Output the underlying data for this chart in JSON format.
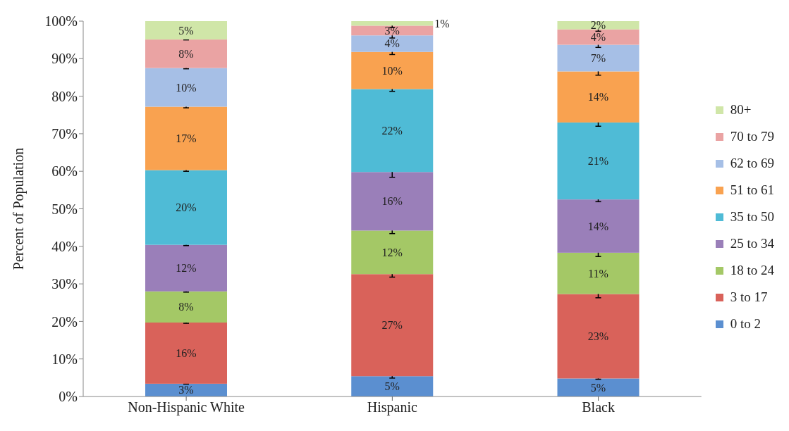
{
  "chart_data": {
    "type": "bar",
    "stacked": true,
    "ylabel": "Percent of Population",
    "categories": [
      "Non-Hispanic White",
      "Hispanic",
      "Black"
    ],
    "ylim": [
      0,
      100
    ],
    "yticks": [
      {
        "value": 0,
        "label": "0%"
      },
      {
        "value": 10,
        "label": "10%"
      },
      {
        "value": 20,
        "label": "20%"
      },
      {
        "value": 30,
        "label": "30%"
      },
      {
        "value": 40,
        "label": "40%"
      },
      {
        "value": 50,
        "label": "50%"
      },
      {
        "value": 60,
        "label": "60%"
      },
      {
        "value": 70,
        "label": "70%"
      },
      {
        "value": 80,
        "label": "80%"
      },
      {
        "value": 90,
        "label": "90%"
      },
      {
        "value": 100,
        "label": "100%"
      }
    ],
    "grid": false,
    "legend": "right",
    "series": [
      {
        "name": "0 to 2",
        "color": "#5b8fd0",
        "values": [
          3.4,
          5.4,
          4.8
        ],
        "errors": [
          0.1,
          0.5,
          0.2
        ],
        "value_labels": [
          "3%",
          "5%",
          "5%"
        ]
      },
      {
        "name": "3 to 17",
        "color": "#d9625a",
        "values": [
          16.3,
          27.2,
          22.5
        ],
        "errors": [
          0.2,
          0.8,
          1.0
        ],
        "value_labels": [
          "16%",
          "27%",
          "23%"
        ]
      },
      {
        "name": "18 to 24",
        "color": "#a4c866",
        "values": [
          8.3,
          11.6,
          11.0
        ],
        "errors": [
          0.2,
          0.8,
          1.0
        ],
        "value_labels": [
          "8%",
          "12%",
          "11%"
        ]
      },
      {
        "name": "25 to 34",
        "color": "#9a7fb9",
        "values": [
          12.4,
          15.6,
          14.2
        ],
        "errors": [
          0.2,
          1.4,
          0.6
        ],
        "value_labels": [
          "12%",
          "16%",
          "14%"
        ]
      },
      {
        "name": "35 to 50",
        "color": "#4fbbd6",
        "values": [
          19.9,
          22.1,
          20.5
        ],
        "errors": [
          0.3,
          0.6,
          1.0
        ],
        "value_labels": [
          "20%",
          "22%",
          "21%"
        ]
      },
      {
        "name": "51 to 61",
        "color": "#f9a250",
        "values": [
          16.9,
          9.9,
          13.6
        ],
        "errors": [
          0.3,
          0.7,
          1.0
        ],
        "value_labels": [
          "17%",
          "10%",
          "14%"
        ]
      },
      {
        "name": "62 to 69",
        "color": "#a6bfe6",
        "values": [
          10.3,
          4.4,
          7.1
        ],
        "errors": [
          0.2,
          0.7,
          0.7
        ],
        "value_labels": [
          "10%",
          "4%",
          "7%"
        ]
      },
      {
        "name": "70 to 79",
        "color": "#eaa3a3",
        "values": [
          7.6,
          2.6,
          4.1
        ],
        "errors": [
          0.1,
          0.5,
          0.5
        ],
        "value_labels": [
          "8%",
          "3%",
          "4%"
        ]
      },
      {
        "name": "80+",
        "color": "#d0e6a8",
        "values": [
          4.9,
          1.2,
          2.2
        ],
        "value_labels": [
          "5%",
          "1%",
          "2%"
        ]
      }
    ]
  }
}
